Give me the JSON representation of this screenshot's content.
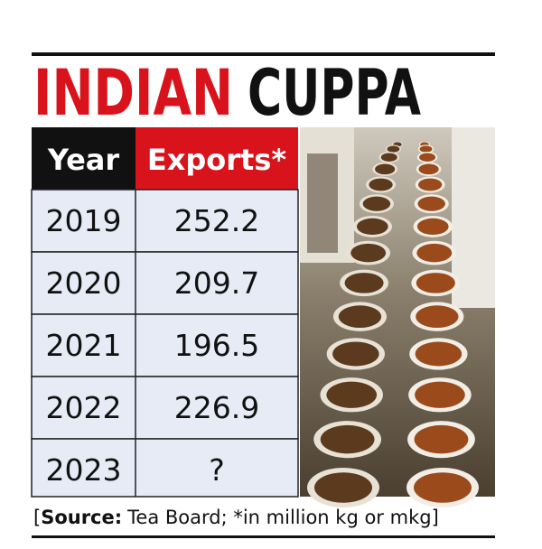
{
  "header": {
    "title_red": "INDIAN",
    "title_black": "CUPPA"
  },
  "table": {
    "columns": [
      "Year",
      "Exports*"
    ],
    "rows": [
      [
        "2019",
        "252.2"
      ],
      [
        "2020",
        "209.7"
      ],
      [
        "2021",
        "196.5"
      ],
      [
        "2022",
        "226.9"
      ],
      [
        "2023",
        "?"
      ]
    ]
  },
  "footer": {
    "open": "[",
    "label": "Source:",
    "text": "Tea Board; *in million kg or mkg]"
  }
}
